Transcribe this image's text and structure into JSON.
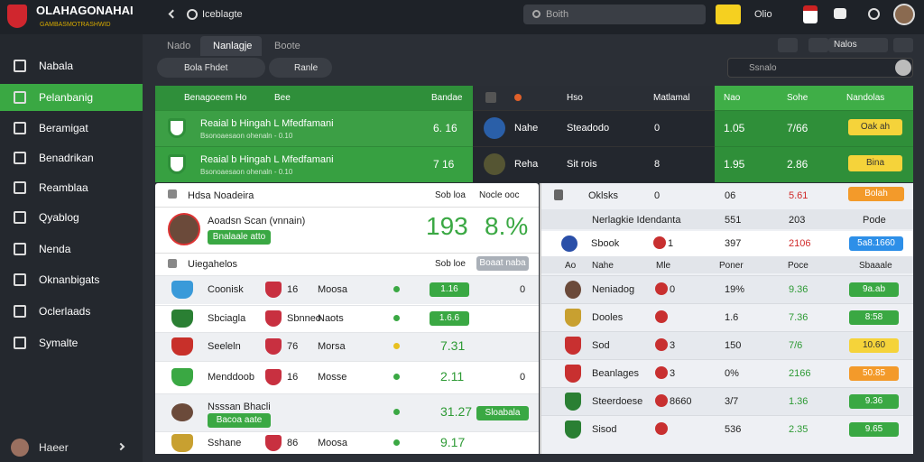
{
  "header": {
    "logo_title": "OLAHAGONAHAI",
    "logo_subtitle": "GAMBASMOTRASHWID",
    "breadcrumb": "Iceblagte",
    "search": "Boith",
    "user": "Olio"
  },
  "sidebar": {
    "items": [
      "Nabala",
      "Pelanbanig",
      "Beramigat",
      "Benadrikan",
      "Reamblaa",
      "Qyablog",
      "Nenda",
      "Oknanbigats",
      "Oclerlaads",
      "Symalte"
    ],
    "active": 1,
    "footer": "Haeer"
  },
  "toolbar": {
    "tabs": [
      "Nado",
      "Nanlagje",
      "Boote"
    ],
    "active_tab": 1,
    "filter": "Bola Fhdet",
    "button": "Ranle",
    "search": "Ssnalo",
    "menu": "Nalos"
  },
  "top_table": {
    "header": {
      "event": "Benagoeem Ho",
      "bet": "Bee",
      "score": "Bandae",
      "name": "Hso",
      "match": "Matlamal",
      "no": "Nao",
      "side": "Sohe",
      "odds": "Nandolas"
    },
    "rows": [
      {
        "title": "Reaial b Hingah L Mfedfamani",
        "subtitle": "Bsonoaesaon ohenaln - 0.10",
        "score": "6. 16",
        "team": "Nahe",
        "name": "Steadodo",
        "val": "0",
        "odds1": "1.05",
        "odds2": "7/66",
        "button": "Oak ah"
      },
      {
        "title": "Reaial b Hingah L Mfedfamani",
        "subtitle": "Bsonoaesaon ohenaln - 0.10",
        "score": "7 16",
        "team": "Reha",
        "name": "Sit rois",
        "val": "8",
        "odds1": "1.95",
        "odds2": "2.86",
        "button": "Bina"
      }
    ]
  },
  "left_panel": {
    "header": {
      "title": "Hdsa Noadeira",
      "col1": "Sob loa",
      "col2": "Nocle ooc"
    },
    "featured": {
      "name": "Aoadsn Scan (vnnain)",
      "tag": "Bnalaale atto",
      "value1": "193",
      "value2": "8.%"
    },
    "section": {
      "title": "Uiegahelos",
      "col": "Sob loe",
      "button": "Boaat naba"
    },
    "rows": [
      {
        "team": "Coonisk",
        "mid": "16",
        "name": "Moosa",
        "odds": "1.16",
        "pill": true,
        "value": "0"
      },
      {
        "team": "Sbciagla",
        "mid": "Sbnneo",
        "name": "Naots",
        "odds": "1.6.6",
        "pill": true
      },
      {
        "team": "Seeleln",
        "mid": "76",
        "name": "Morsa",
        "odds": "7.31"
      },
      {
        "team": "Menddoob",
        "mid": "16",
        "name": "Mosse",
        "odds": "2.11",
        "value": "0"
      },
      {
        "team": "Nsssan Bhacli",
        "tag": "Bacoa aate",
        "odds": "31.27",
        "button": "Sloabala"
      },
      {
        "team": "Sshane",
        "mid": "86",
        "name": "Moosa",
        "odds": "9.17"
      }
    ]
  },
  "right_panel": {
    "header": {
      "title": "Oklsks",
      "c1": "0",
      "c2": "06",
      "c3": "5.61",
      "button": "Bolah"
    },
    "section": {
      "title": "Nerlagkie Idendanta",
      "c1": "551",
      "c2": "203",
      "c3": "Pode"
    },
    "top_row": {
      "name": "Sbook",
      "num": "1",
      "v1": "397",
      "v2": "2106",
      "button": "5a8.1660"
    },
    "columns": [
      "Ao",
      "Nahe",
      "Mle",
      "Poner",
      "Poce",
      "Sbaaale"
    ],
    "rows": [
      {
        "name": "Neniadog",
        "num": "0",
        "v1": "19%",
        "v2": "9.36",
        "button": "9a.ab",
        "color": "#3aa843"
      },
      {
        "name": "Dooles",
        "v1": "1.6",
        "v2": "7.36",
        "button": "8:58",
        "color": "#3aa843"
      },
      {
        "name": "Sod",
        "num": "3",
        "v1": "150",
        "v2": "7/6",
        "button": "10.60",
        "color": "#f5d33a"
      },
      {
        "name": "Beanlages",
        "num": "3",
        "v1": "0%",
        "v2": "2166",
        "button": "50.85",
        "color": "#f39a2a"
      },
      {
        "name": "Steerdoese",
        "num": "8660",
        "v1": "3/7",
        "v2": "1.36",
        "button": "9.36",
        "color": "#3aa843"
      },
      {
        "name": "Sisod",
        "v1": "536",
        "v2": "2.35",
        "button": "9.65",
        "color": "#3aa843"
      }
    ]
  }
}
